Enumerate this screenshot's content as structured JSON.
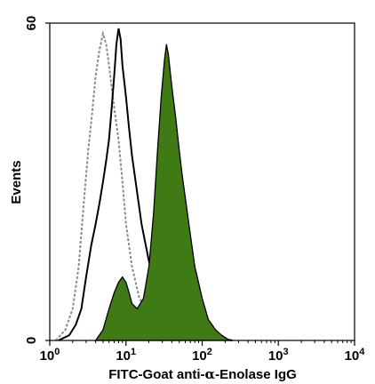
{
  "chart_data": {
    "type": "area",
    "xscale": "log",
    "xlim": [
      1,
      10000
    ],
    "ylim": [
      0,
      60
    ],
    "xlabel_parts": [
      "FITC-Goat anti-",
      "α",
      "-Enolase IgG"
    ],
    "ylabel": "Events",
    "x_ticks": [
      {
        "base": "10",
        "exp": "0",
        "value": 1
      },
      {
        "base": "10",
        "exp": "1",
        "value": 10
      },
      {
        "base": "10",
        "exp": "2",
        "value": 100
      },
      {
        "base": "10",
        "exp": "3",
        "value": 1000
      },
      {
        "base": "10",
        "exp": "4",
        "value": 10000
      }
    ],
    "y_ticks": [
      {
        "label": "0",
        "value": 0
      },
      {
        "label": "60",
        "value": 60
      }
    ],
    "grid": false,
    "legend": "none",
    "series": [
      {
        "style": "dashed-gray",
        "color": "#8a8a8a",
        "points": [
          [
            1.2,
            0
          ],
          [
            1.6,
            2
          ],
          [
            2.0,
            6
          ],
          [
            2.4,
            14
          ],
          [
            2.8,
            26
          ],
          [
            3.2,
            36
          ],
          [
            3.6,
            43
          ],
          [
            4.0,
            50
          ],
          [
            4.5,
            55
          ],
          [
            5.0,
            58
          ],
          [
            5.5,
            56
          ],
          [
            6.0,
            52
          ],
          [
            7.0,
            44
          ],
          [
            8.0,
            38
          ],
          [
            9.0,
            30
          ],
          [
            10.0,
            22
          ],
          [
            12.0,
            14
          ],
          [
            15.0,
            8
          ],
          [
            20.0,
            5
          ],
          [
            25.0,
            3
          ],
          [
            35.0,
            2
          ],
          [
            50.0,
            1
          ],
          [
            80.0,
            0.5
          ],
          [
            120.0,
            0
          ]
        ]
      },
      {
        "style": "solid-black",
        "color": "#000000",
        "points": [
          [
            1.3,
            0
          ],
          [
            1.8,
            1
          ],
          [
            2.2,
            3
          ],
          [
            2.6,
            6
          ],
          [
            3.0,
            12
          ],
          [
            3.5,
            18
          ],
          [
            4.0,
            22
          ],
          [
            4.5,
            26
          ],
          [
            5.0,
            30
          ],
          [
            5.5,
            34
          ],
          [
            6.0,
            38
          ],
          [
            6.5,
            44
          ],
          [
            7.0,
            50
          ],
          [
            7.5,
            56
          ],
          [
            8.0,
            59
          ],
          [
            8.5,
            57
          ],
          [
            9.0,
            52
          ],
          [
            10.0,
            46
          ],
          [
            11.0,
            40
          ],
          [
            12.0,
            35
          ],
          [
            14.0,
            28
          ],
          [
            16.0,
            22
          ],
          [
            20.0,
            15
          ],
          [
            25.0,
            10
          ],
          [
            30.0,
            7
          ],
          [
            40.0,
            4
          ],
          [
            60.0,
            2
          ],
          [
            100.0,
            1
          ],
          [
            150.0,
            0.5
          ],
          [
            250.0,
            0
          ]
        ]
      },
      {
        "style": "filled-green",
        "color": "#3f7a14",
        "points": [
          [
            4.0,
            0
          ],
          [
            5.0,
            2
          ],
          [
            6.0,
            6
          ],
          [
            7.0,
            9
          ],
          [
            8.0,
            11
          ],
          [
            9.0,
            12
          ],
          [
            10.0,
            11
          ],
          [
            11.0,
            9
          ],
          [
            12.0,
            7
          ],
          [
            14.0,
            6
          ],
          [
            17.0,
            8
          ],
          [
            20.0,
            14
          ],
          [
            23.0,
            24
          ],
          [
            26.0,
            36
          ],
          [
            29.0,
            46
          ],
          [
            32.0,
            53
          ],
          [
            34.0,
            56
          ],
          [
            36.0,
            54
          ],
          [
            40.0,
            48
          ],
          [
            45.0,
            42
          ],
          [
            50.0,
            36
          ],
          [
            55.0,
            31
          ],
          [
            60.0,
            27
          ],
          [
            70.0,
            20
          ],
          [
            80.0,
            14
          ],
          [
            100.0,
            8
          ],
          [
            120.0,
            4
          ],
          [
            150.0,
            2
          ],
          [
            180.0,
            1
          ],
          [
            230.0,
            0
          ]
        ]
      }
    ]
  }
}
